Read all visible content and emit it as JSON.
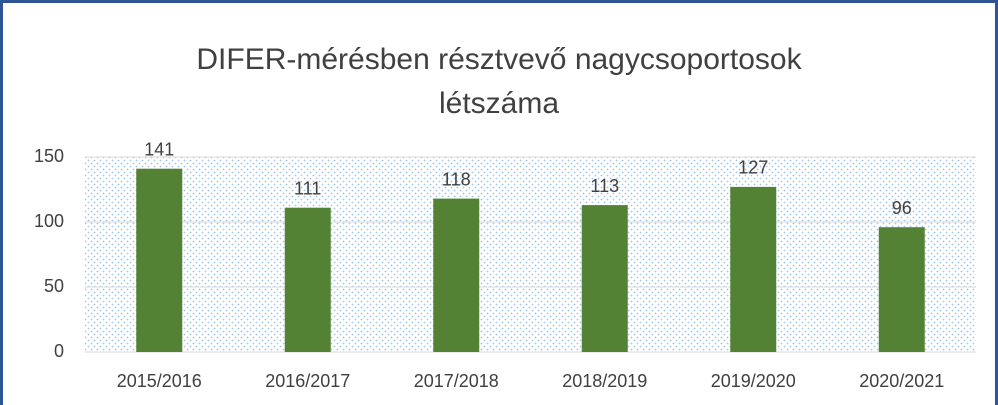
{
  "chart_data": {
    "type": "bar",
    "title": "DIFER-mérésben résztvevő nagycsoportosok létszáma",
    "categories": [
      "2015/2016",
      "2016/2017",
      "2017/2018",
      "2018/2019",
      "2019/2020",
      "2020/2021"
    ],
    "values": [
      141,
      111,
      118,
      113,
      127,
      96
    ],
    "color": "#548235",
    "ylim": [
      0,
      150
    ],
    "yticks": [
      0,
      50,
      100,
      150
    ],
    "grid": true
  }
}
